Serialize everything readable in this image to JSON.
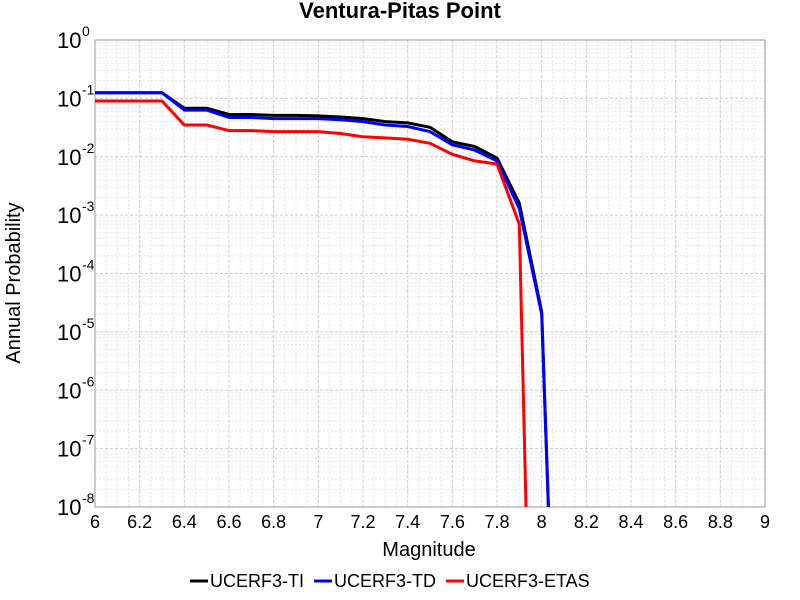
{
  "chart_data": {
    "type": "line",
    "title": "Ventura-Pitas Point",
    "xlabel": "Magnitude",
    "ylabel": "Annual Probability",
    "xlim": [
      6,
      9
    ],
    "ylim": [
      1e-08,
      1
    ],
    "yscale": "log",
    "grid": true,
    "legend_position": "bottom",
    "x_ticks": [
      "6",
      "6.2",
      "6.4",
      "6.6",
      "6.8",
      "7",
      "7.2",
      "7.4",
      "7.6",
      "7.8",
      "8",
      "8.2",
      "8.4",
      "8.6",
      "8.8",
      "9"
    ],
    "y_ticks": [
      {
        "base": "10",
        "exp": "0"
      },
      {
        "base": "10",
        "exp": "-1"
      },
      {
        "base": "10",
        "exp": "-2"
      },
      {
        "base": "10",
        "exp": "-3"
      },
      {
        "base": "10",
        "exp": "-4"
      },
      {
        "base": "10",
        "exp": "-5"
      },
      {
        "base": "10",
        "exp": "-6"
      },
      {
        "base": "10",
        "exp": "-7"
      },
      {
        "base": "10",
        "exp": "-8"
      }
    ],
    "series": [
      {
        "name": "UCERF3-TI",
        "color": "#000000",
        "x": [
          6.0,
          6.1,
          6.2,
          6.3,
          6.4,
          6.5,
          6.6,
          6.7,
          6.8,
          6.9,
          7.0,
          7.1,
          7.2,
          7.3,
          7.4,
          7.5,
          7.6,
          7.7,
          7.8,
          7.9,
          8.0,
          8.03
        ],
        "y": [
          0.125,
          0.125,
          0.125,
          0.125,
          0.068,
          0.068,
          0.053,
          0.053,
          0.051,
          0.051,
          0.05,
          0.048,
          0.045,
          0.04,
          0.038,
          0.032,
          0.018,
          0.015,
          0.0095,
          0.0016,
          2.2e-05,
          1e-08
        ]
      },
      {
        "name": "UCERF3-TD",
        "color": "#0000ff",
        "x": [
          6.0,
          6.1,
          6.2,
          6.3,
          6.4,
          6.5,
          6.6,
          6.7,
          6.8,
          6.9,
          7.0,
          7.1,
          7.2,
          7.3,
          7.4,
          7.5,
          7.6,
          7.7,
          7.8,
          7.9,
          8.0,
          8.03
        ],
        "y": [
          0.125,
          0.125,
          0.125,
          0.125,
          0.063,
          0.063,
          0.047,
          0.047,
          0.045,
          0.045,
          0.045,
          0.043,
          0.04,
          0.035,
          0.033,
          0.027,
          0.016,
          0.013,
          0.0085,
          0.0013,
          2e-05,
          1e-08
        ]
      },
      {
        "name": "UCERF3-ETAS",
        "color": "#ff0000",
        "x": [
          6.0,
          6.1,
          6.2,
          6.3,
          6.4,
          6.5,
          6.6,
          6.7,
          6.8,
          6.9,
          7.0,
          7.1,
          7.2,
          7.3,
          7.4,
          7.5,
          7.6,
          7.7,
          7.8,
          7.9,
          7.93
        ],
        "y": [
          0.09,
          0.09,
          0.09,
          0.09,
          0.035,
          0.035,
          0.028,
          0.028,
          0.027,
          0.027,
          0.027,
          0.025,
          0.022,
          0.021,
          0.02,
          0.017,
          0.011,
          0.0085,
          0.0075,
          0.0007,
          1e-08
        ]
      }
    ]
  }
}
